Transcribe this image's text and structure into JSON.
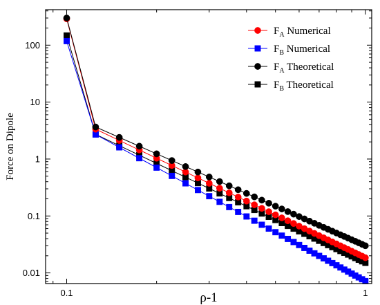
{
  "chart_data": {
    "type": "line",
    "xlabel": "ρ-1",
    "ylabel": "Force on Dipole",
    "xscale": "log",
    "yscale": "log",
    "xlim": [
      0.085,
      1.05
    ],
    "ylim": [
      0.0065,
      420
    ],
    "x_ticks": [
      {
        "value": 0.1,
        "label": "0.1"
      },
      {
        "value": 1,
        "label": "1"
      }
    ],
    "y_ticks": [
      {
        "value": 0.01,
        "label": "0.01"
      },
      {
        "value": 0.1,
        "label": "0.1"
      },
      {
        "value": 1,
        "label": "1"
      },
      {
        "value": 10,
        "label": "10"
      },
      {
        "value": 100,
        "label": "100"
      }
    ],
    "legend_position": "top-right",
    "x": [
      0.1,
      0.125,
      0.15,
      0.175,
      0.2,
      0.225,
      0.25,
      0.275,
      0.3,
      0.325,
      0.35,
      0.375,
      0.4,
      0.425,
      0.45,
      0.475,
      0.5,
      0.525,
      0.55,
      0.575,
      0.6,
      0.625,
      0.65,
      0.675,
      0.7,
      0.725,
      0.75,
      0.775,
      0.8,
      0.825,
      0.85,
      0.875,
      0.9,
      0.925,
      0.95,
      0.975,
      1.0
    ],
    "series": [
      {
        "name_main": "F",
        "name_sub": "A",
        "name_tail": " Numerical",
        "color": "#ff0000",
        "marker": "circle",
        "slope": -2.5,
        "ref_value": 0.0185,
        "first_value": 290,
        "draw_order": 2
      },
      {
        "name_main": "F",
        "name_sub": "B",
        "name_tail": " Numerical",
        "color": "#0000ff",
        "marker": "square",
        "slope": -2.85,
        "ref_value": 0.0072,
        "first_value": 118,
        "draw_order": 1
      },
      {
        "name_main": "F",
        "name_sub": "A",
        "name_tail": " Theoretical",
        "color": "#000000",
        "marker": "circle",
        "slope": -2.31,
        "ref_value": 0.03,
        "first_value": 300,
        "draw_order": 3
      },
      {
        "name_main": "F",
        "name_sub": "B",
        "name_tail": " Theoretical",
        "color": "#000000",
        "marker": "square",
        "slope": -2.5,
        "ref_value": 0.015,
        "first_value": 148,
        "draw_order": 0
      }
    ]
  }
}
